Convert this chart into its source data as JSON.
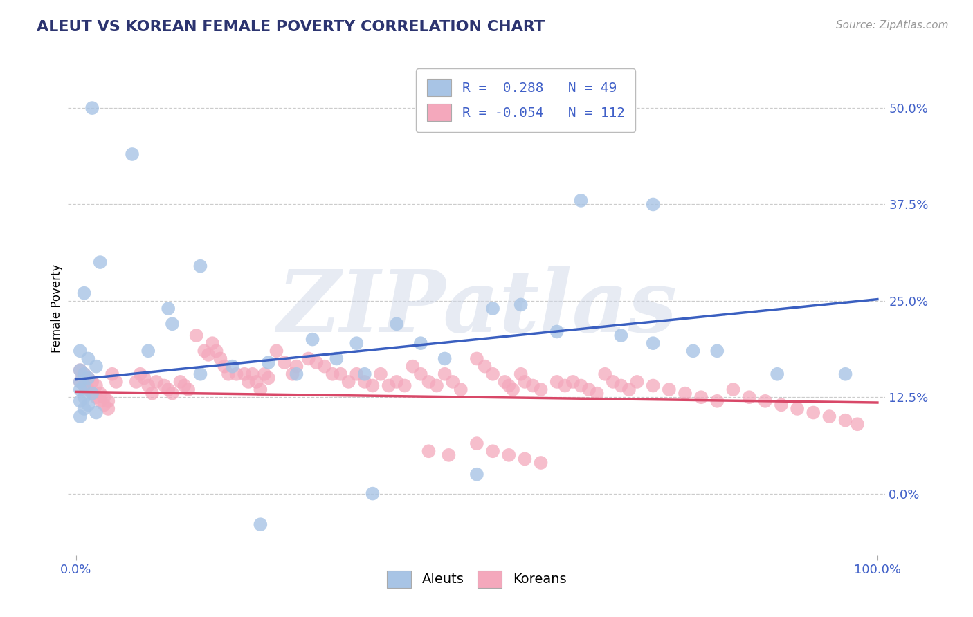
{
  "title": "ALEUT VS KOREAN FEMALE POVERTY CORRELATION CHART",
  "source": "Source: ZipAtlas.com",
  "ylabel": "Female Poverty",
  "xlim": [
    -0.01,
    1.01
  ],
  "ylim": [
    -0.08,
    0.56
  ],
  "yticks": [
    0.0,
    0.125,
    0.25,
    0.375,
    0.5
  ],
  "ytick_labels": [
    "0.0%",
    "12.5%",
    "25.0%",
    "37.5%",
    "50.0%"
  ],
  "xticks": [
    0.0,
    1.0
  ],
  "xtick_labels": [
    "0.0%",
    "100.0%"
  ],
  "aleut_R": 0.288,
  "aleut_N": 49,
  "korean_R": -0.054,
  "korean_N": 112,
  "aleut_color": "#a8c4e5",
  "korean_color": "#f4a8bc",
  "aleut_line_color": "#3a5fc0",
  "korean_line_color": "#d84868",
  "label_color": "#4060c8",
  "background_color": "#ffffff",
  "grid_color": "#cccccc",
  "title_color": "#2c3470",
  "aleut_line_x": [
    0.0,
    1.0
  ],
  "aleut_line_y": [
    0.148,
    0.252
  ],
  "korean_line_x": [
    0.0,
    1.0
  ],
  "korean_line_y": [
    0.132,
    0.118
  ],
  "watermark_text": "ZIPatlas",
  "aleut_x": [
    0.02,
    0.07,
    0.03,
    0.01,
    0.005,
    0.015,
    0.025,
    0.005,
    0.01,
    0.015,
    0.005,
    0.01,
    0.005,
    0.02,
    0.01,
    0.005,
    0.015,
    0.01,
    0.025,
    0.005,
    0.155,
    0.12,
    0.295,
    0.35,
    0.4,
    0.52,
    0.6,
    0.68,
    0.72,
    0.77,
    0.8,
    0.72,
    0.63,
    0.555,
    0.46,
    0.43,
    0.325,
    0.275,
    0.195,
    0.155,
    0.115,
    0.09,
    0.5,
    0.37,
    0.23,
    0.875,
    0.96,
    0.24,
    0.36
  ],
  "aleut_y": [
    0.5,
    0.44,
    0.3,
    0.26,
    0.185,
    0.175,
    0.165,
    0.16,
    0.155,
    0.15,
    0.145,
    0.14,
    0.135,
    0.13,
    0.125,
    0.12,
    0.115,
    0.11,
    0.105,
    0.1,
    0.295,
    0.22,
    0.2,
    0.195,
    0.22,
    0.24,
    0.21,
    0.205,
    0.195,
    0.185,
    0.185,
    0.375,
    0.38,
    0.245,
    0.175,
    0.195,
    0.175,
    0.155,
    0.165,
    0.155,
    0.24,
    0.185,
    0.025,
    0.0,
    -0.04,
    0.155,
    0.155,
    0.17,
    0.155
  ],
  "korean_x": [
    0.005,
    0.01,
    0.015,
    0.02,
    0.025,
    0.03,
    0.035,
    0.04,
    0.045,
    0.05,
    0.005,
    0.01,
    0.015,
    0.02,
    0.025,
    0.03,
    0.035,
    0.04,
    0.075,
    0.08,
    0.085,
    0.09,
    0.095,
    0.1,
    0.11,
    0.115,
    0.12,
    0.13,
    0.135,
    0.14,
    0.15,
    0.16,
    0.165,
    0.17,
    0.175,
    0.18,
    0.185,
    0.19,
    0.2,
    0.21,
    0.215,
    0.22,
    0.225,
    0.23,
    0.235,
    0.24,
    0.25,
    0.26,
    0.27,
    0.275,
    0.29,
    0.3,
    0.31,
    0.32,
    0.33,
    0.34,
    0.35,
    0.36,
    0.37,
    0.38,
    0.39,
    0.4,
    0.41,
    0.42,
    0.43,
    0.44,
    0.45,
    0.46,
    0.47,
    0.48,
    0.5,
    0.51,
    0.52,
    0.535,
    0.54,
    0.545,
    0.555,
    0.56,
    0.57,
    0.58,
    0.6,
    0.61,
    0.62,
    0.63,
    0.64,
    0.65,
    0.66,
    0.67,
    0.68,
    0.69,
    0.7,
    0.72,
    0.74,
    0.76,
    0.78,
    0.8,
    0.82,
    0.84,
    0.86,
    0.88,
    0.9,
    0.92,
    0.94,
    0.96,
    0.975,
    0.44,
    0.465,
    0.5,
    0.52,
    0.54,
    0.56,
    0.58
  ],
  "korean_y": [
    0.145,
    0.14,
    0.135,
    0.13,
    0.125,
    0.12,
    0.115,
    0.11,
    0.155,
    0.145,
    0.16,
    0.155,
    0.15,
    0.145,
    0.14,
    0.13,
    0.125,
    0.12,
    0.145,
    0.155,
    0.15,
    0.14,
    0.13,
    0.145,
    0.14,
    0.135,
    0.13,
    0.145,
    0.14,
    0.135,
    0.205,
    0.185,
    0.18,
    0.195,
    0.185,
    0.175,
    0.165,
    0.155,
    0.155,
    0.155,
    0.145,
    0.155,
    0.145,
    0.135,
    0.155,
    0.15,
    0.185,
    0.17,
    0.155,
    0.165,
    0.175,
    0.17,
    0.165,
    0.155,
    0.155,
    0.145,
    0.155,
    0.145,
    0.14,
    0.155,
    0.14,
    0.145,
    0.14,
    0.165,
    0.155,
    0.145,
    0.14,
    0.155,
    0.145,
    0.135,
    0.175,
    0.165,
    0.155,
    0.145,
    0.14,
    0.135,
    0.155,
    0.145,
    0.14,
    0.135,
    0.145,
    0.14,
    0.145,
    0.14,
    0.135,
    0.13,
    0.155,
    0.145,
    0.14,
    0.135,
    0.145,
    0.14,
    0.135,
    0.13,
    0.125,
    0.12,
    0.135,
    0.125,
    0.12,
    0.115,
    0.11,
    0.105,
    0.1,
    0.095,
    0.09,
    0.055,
    0.05,
    0.065,
    0.055,
    0.05,
    0.045,
    0.04
  ]
}
